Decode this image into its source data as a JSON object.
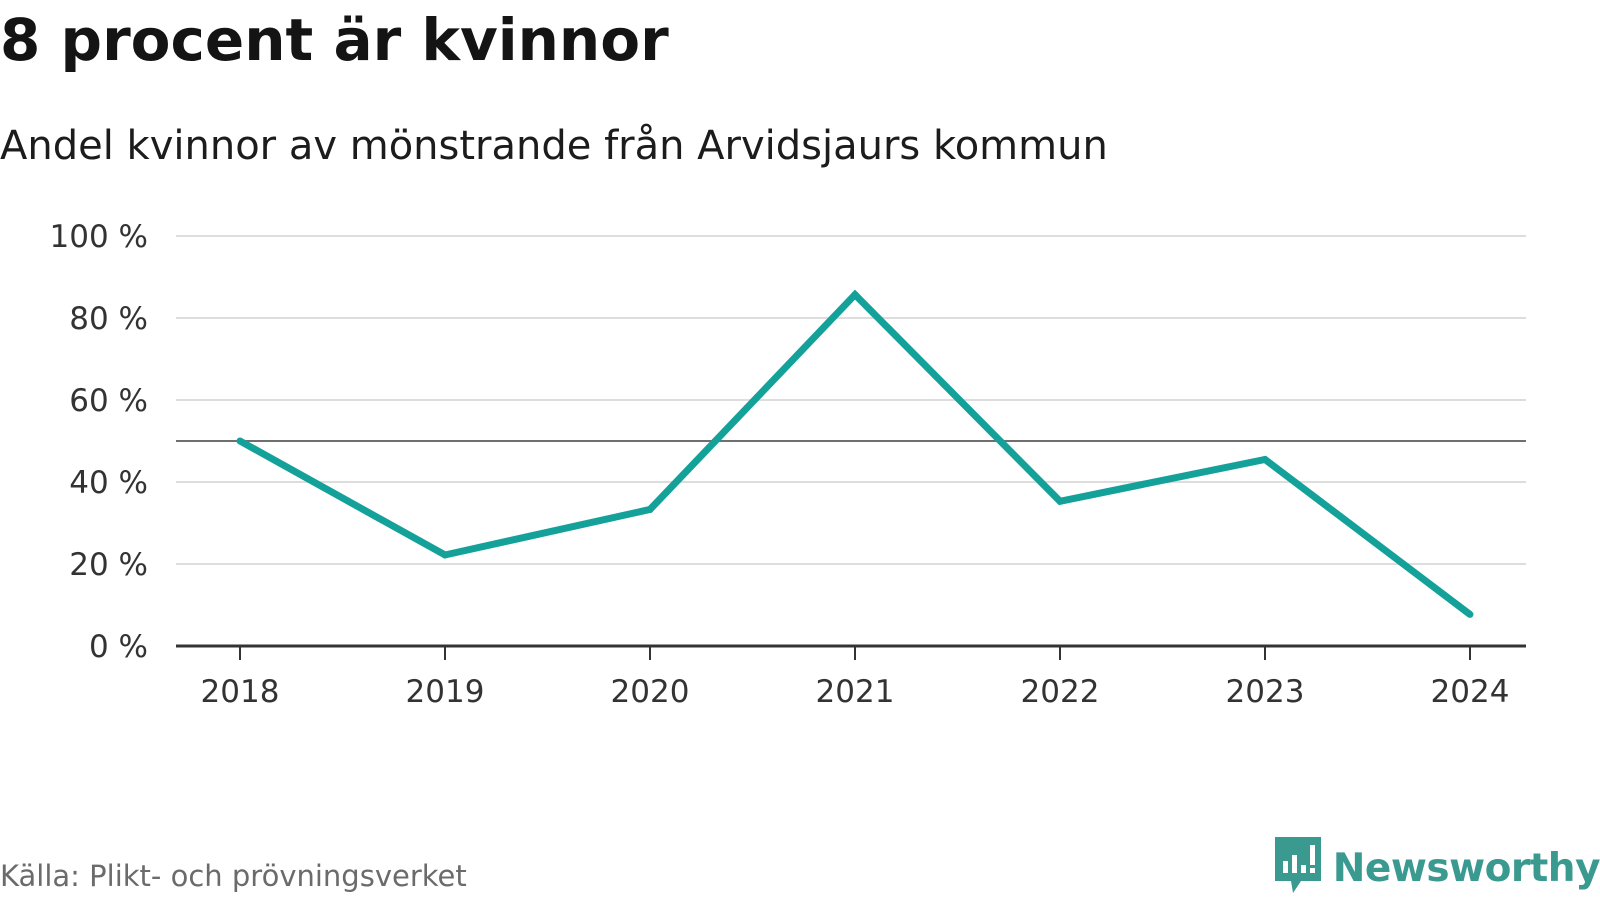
{
  "title": "8 procent är kvinnor",
  "subtitle": "Andel kvinnor av mönstrande från Arvidsjaurs kommun",
  "source": "Källa: Plikt- och prövningsverket",
  "brand": {
    "name": "Newsworthy",
    "icon": "newsworthy-logo-icon",
    "color": "#3a9a90"
  },
  "chart_data": {
    "type": "line",
    "title": "8 procent är kvinnor",
    "subtitle": "Andel kvinnor av mönstrande från Arvidsjaurs kommun",
    "categories": [
      "2018",
      "2019",
      "2020",
      "2021",
      "2022",
      "2023",
      "2024"
    ],
    "series": [
      {
        "values": [
          50,
          22.2,
          33.3,
          85.7,
          35.3,
          45.5,
          7.7
        ],
        "color": "#14a19a"
      }
    ],
    "y_ticks": [
      0,
      20,
      40,
      60,
      80,
      100
    ],
    "y_tick_labels": [
      "0 %",
      "20 %",
      "40 %",
      "60 %",
      "80 %",
      "100 %"
    ],
    "ylim": [
      0,
      100
    ],
    "reference_line": 50,
    "grid": true
  }
}
